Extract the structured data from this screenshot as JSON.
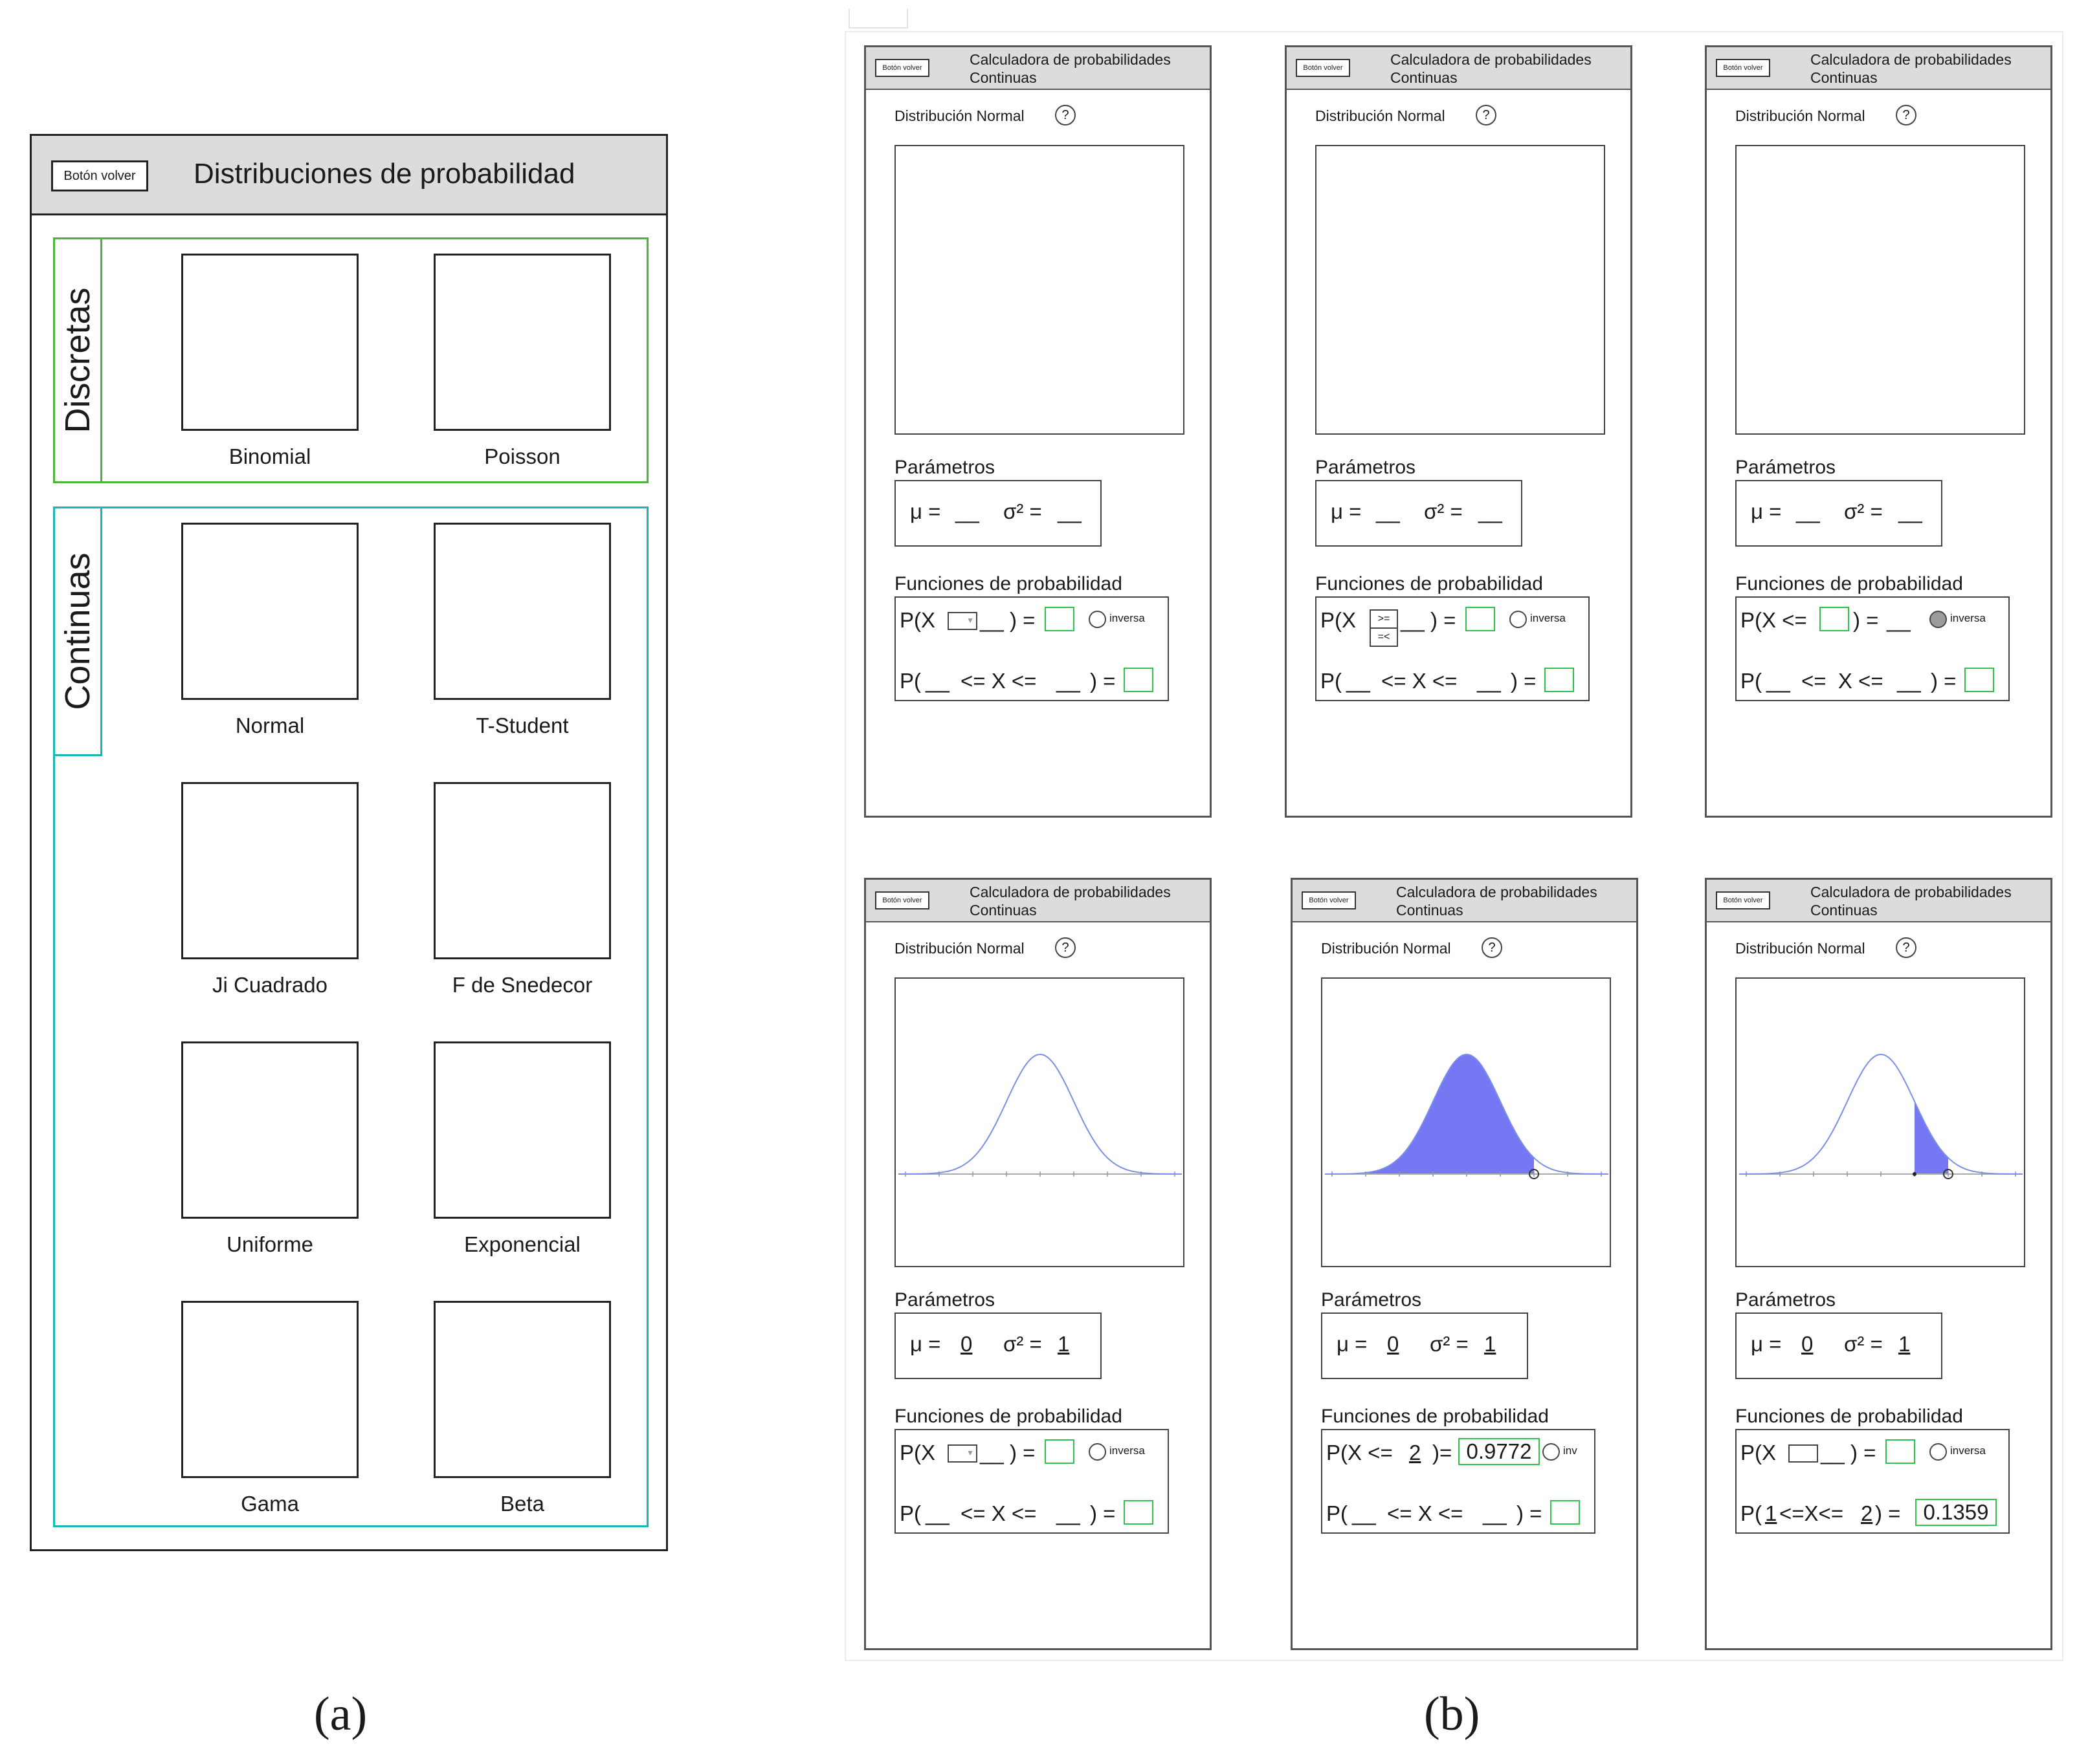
{
  "menu": {
    "back_label": "Botón volver",
    "title": "Distribuciones de probabilidad",
    "discrete_label": "Discretas",
    "continuous_label": "Continuas",
    "discrete_items": [
      "Binomial",
      "Poisson"
    ],
    "continuous_items": [
      "Normal",
      "T-Student",
      "Ji Cuadrado",
      "F de Snedecor",
      "Uniforme",
      "Exponencial",
      "Gama",
      "Beta"
    ]
  },
  "calc": {
    "back_label": "Botón volver",
    "title_line1": "Calculadora de probabilidades",
    "title_line2": "Continuas",
    "dist_label": "Distribución Normal",
    "help": "?",
    "params_label": "Parámetros",
    "functions_label": "Funciones de probabilidad",
    "mu": "μ =",
    "sigma": "σ² =",
    "blank": "__",
    "inverse": "inversa",
    "inverse_short": "inv",
    "op_ge": ">=",
    "op_le": "=<",
    "mu_value": "0",
    "sigma_value": "1",
    "prob_le_2_x": "2",
    "prob_le_2_result": "0.9772",
    "between_a": "1",
    "between_b": "2",
    "between_result": "0.1359"
  },
  "captions": {
    "a": "(a)",
    "b": "(b)"
  },
  "colors": {
    "discrete_border": "#4db33d",
    "continuous_border": "#1ab6b6",
    "result_border": "#2fc24f",
    "curve": "#7b8fe8",
    "fill": "#6a6cf2"
  }
}
